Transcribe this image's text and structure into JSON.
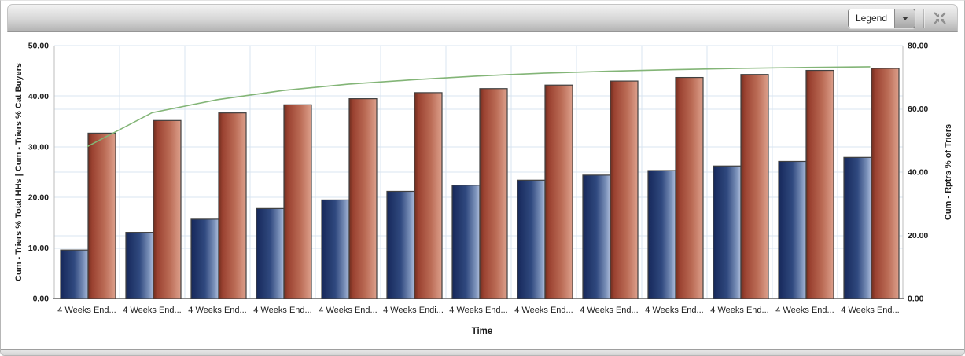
{
  "toolbar": {
    "legend_dropdown": {
      "value": "Legend"
    },
    "icons": [
      "chevron-down-icon",
      "collapse-arrows-icon"
    ]
  },
  "colors": {
    "grid": "#d9e4f1",
    "axis_side": "#bcbcbc",
    "axis_bottom": "#878787",
    "bar_stroke": "#404040",
    "text": "#1c1c1c",
    "blue_bar_stops": [
      "#16285a",
      "#30497f",
      "#7d93bb",
      "#aebddb"
    ],
    "red_bar_stops": [
      "#6e2d1e",
      "#9a4130",
      "#bb6c56",
      "#dda08c"
    ],
    "line_green": "#83b577"
  },
  "chart_data": {
    "type": "bar",
    "title": "",
    "xlabel": "Time",
    "ylabel_left": "Cum - Triers % Total HHs | Cum - Triers % Cat Buyers",
    "ylabel_right": "Cum - Rptrs % of Triers",
    "y_left": {
      "min": 0,
      "max": 50,
      "step": 10
    },
    "y_right": {
      "min": 0,
      "max": 80,
      "step": 20
    },
    "tick_decimals": 2,
    "grid": "on",
    "legend_position": "hidden",
    "categories": [
      "4 Weeks End...",
      "4 Weeks End...",
      "4 Weeks End...",
      "4 Weeks End...",
      "4 Weeks End...",
      "4 Weeks Endi...",
      "4 Weeks End...",
      "4 Weeks End...",
      "4 Weeks End...",
      "4 Weeks End...",
      "4 Weeks End...",
      "4 Weeks End...",
      "4 Weeks End..."
    ],
    "series": [
      {
        "name": "Cum - Triers % Total HHs",
        "type": "bar",
        "axis": "left",
        "values": [
          9.6,
          13.1,
          15.7,
          17.8,
          19.5,
          21.2,
          22.4,
          23.4,
          24.4,
          25.3,
          26.2,
          27.1,
          27.9
        ]
      },
      {
        "name": "Cum - Triers % Cat Buyers",
        "type": "bar",
        "axis": "left",
        "values": [
          32.7,
          35.2,
          36.7,
          38.3,
          39.5,
          40.7,
          41.5,
          42.2,
          43.0,
          43.7,
          44.3,
          45.1,
          45.5
        ]
      },
      {
        "name": "Cum - Rptrs % of Triers",
        "type": "line",
        "axis": "right",
        "values": [
          48.0,
          58.8,
          62.9,
          65.8,
          67.8,
          69.2,
          70.4,
          71.3,
          71.9,
          72.4,
          72.8,
          73.1,
          73.3
        ]
      }
    ]
  }
}
